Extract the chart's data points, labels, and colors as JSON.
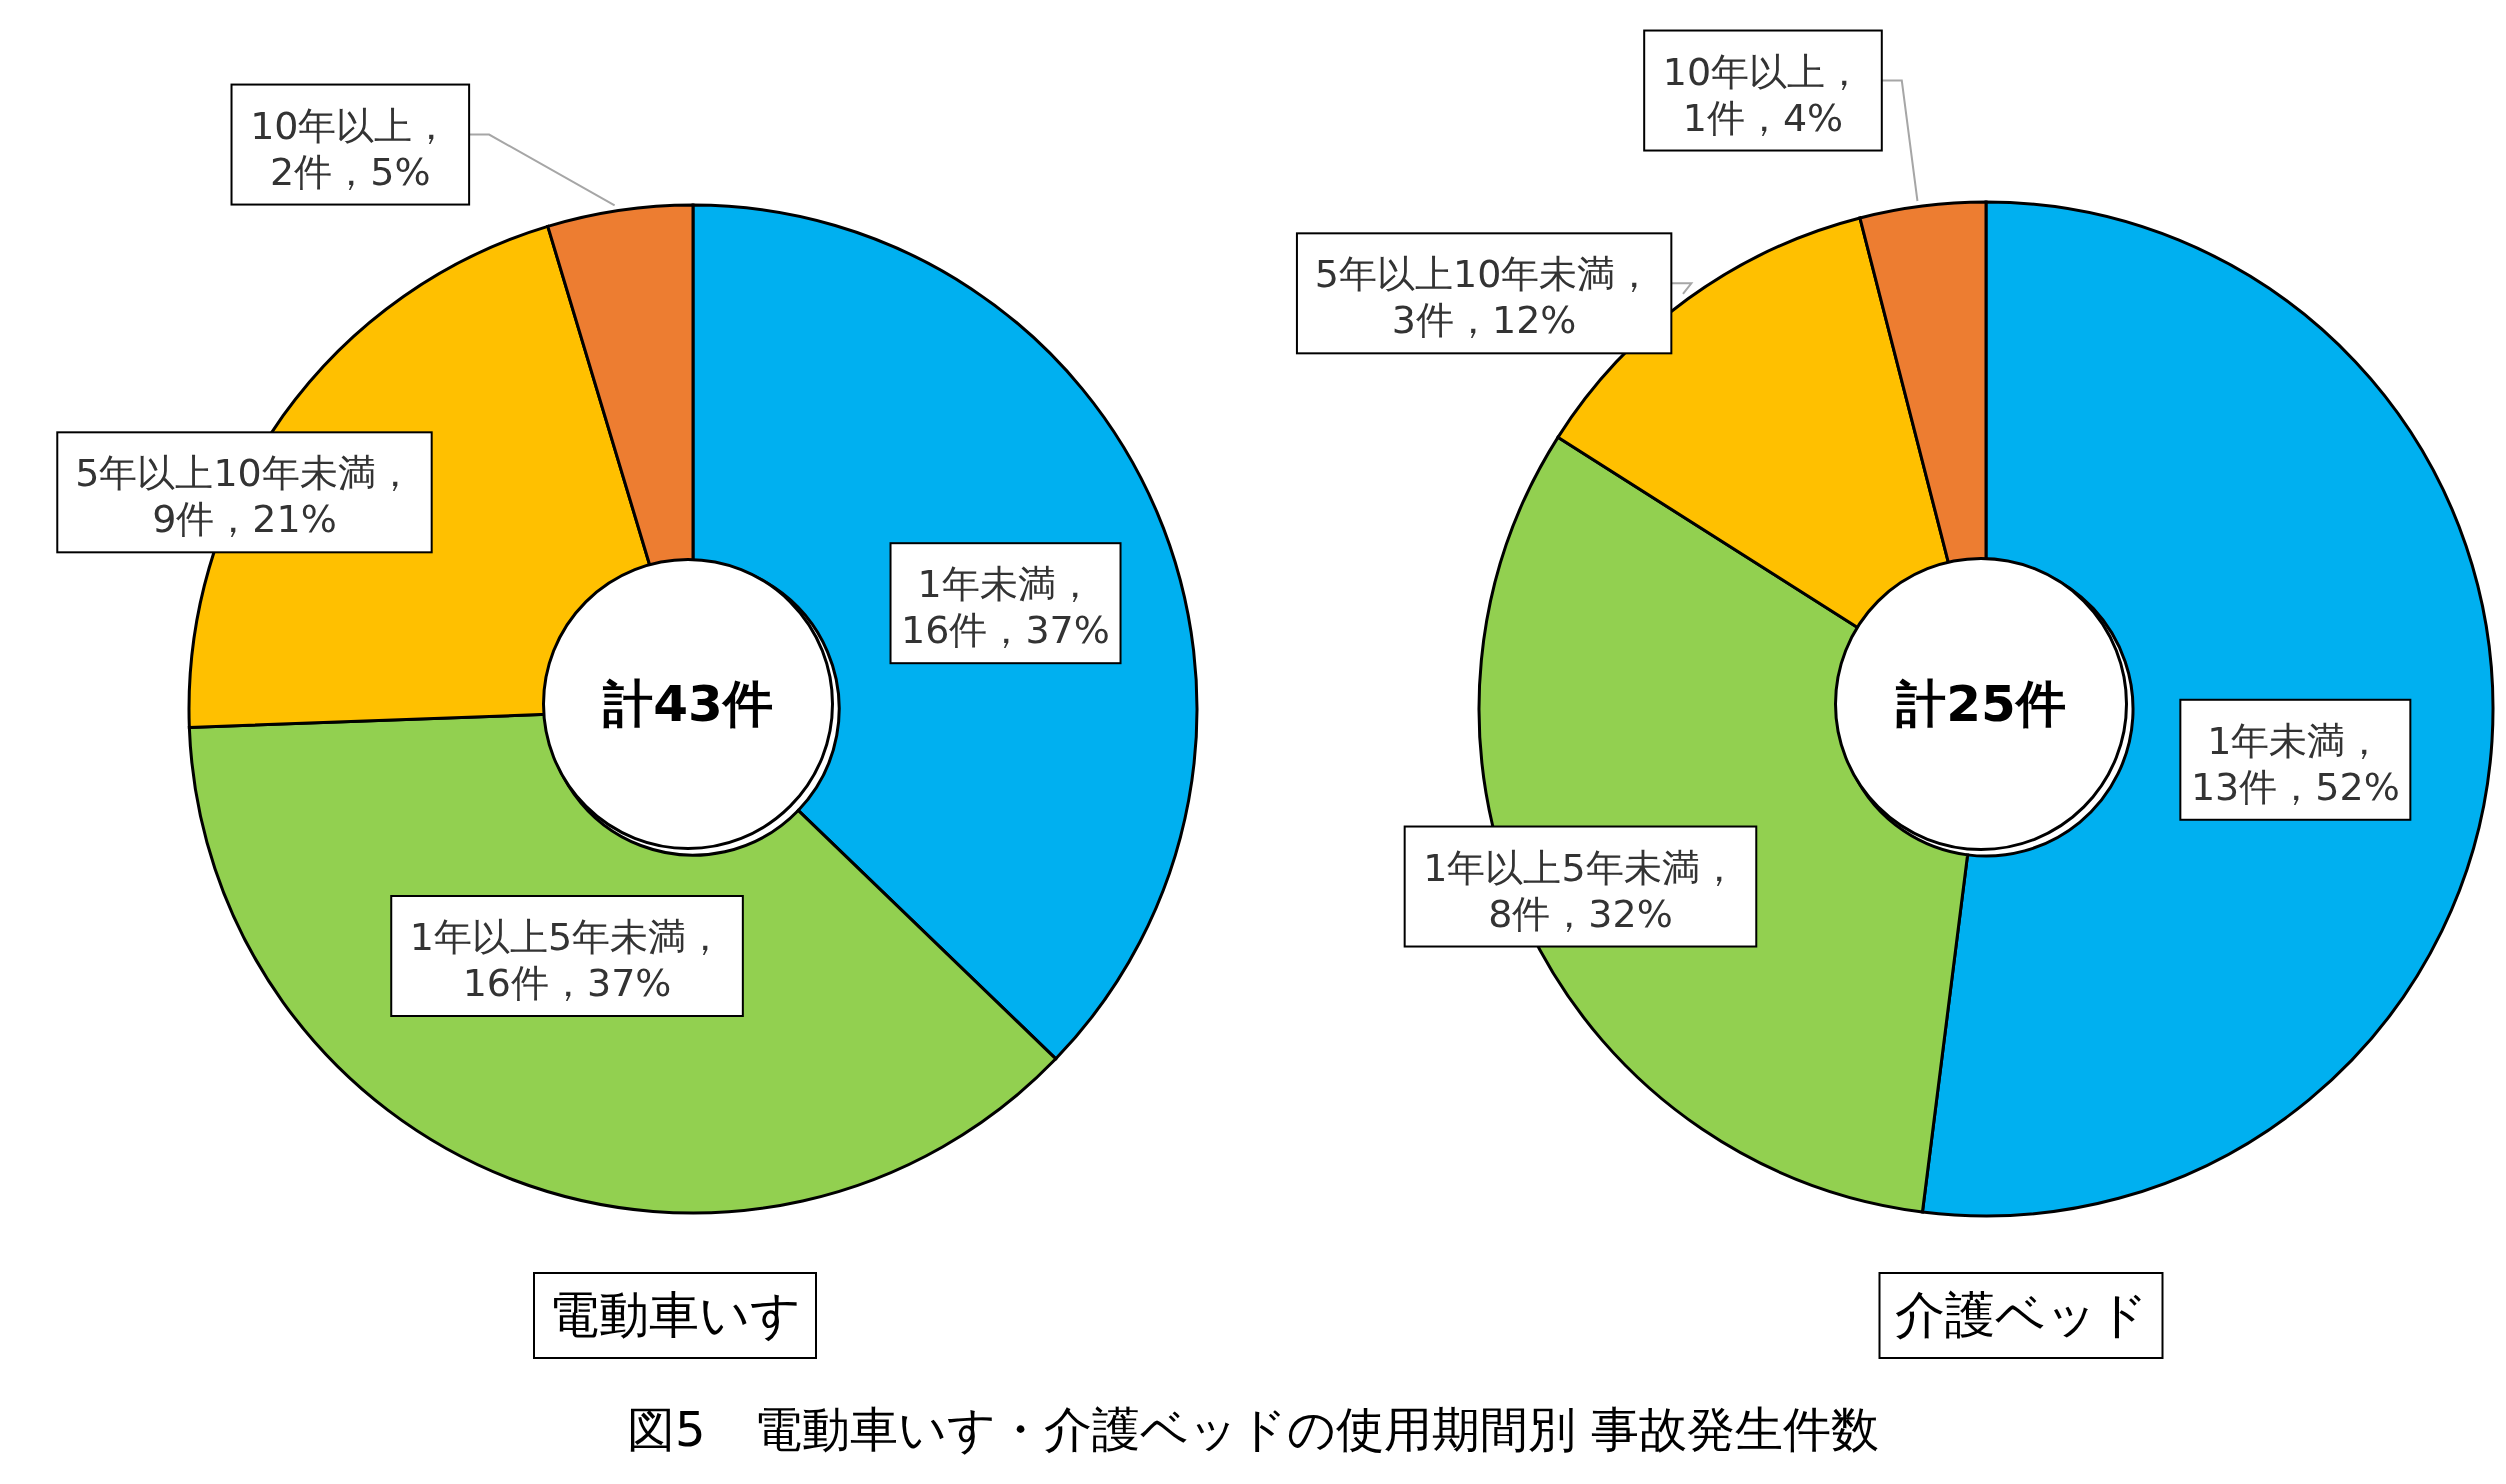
{
  "chart_data": [
    {
      "type": "donut",
      "title": "電動車いす",
      "categories": [
        "1年未満",
        "1年以上5年未満",
        "5年以上10年未満",
        "10年以上"
      ],
      "values": [
        16,
        16,
        9,
        2
      ],
      "colors": [
        "#00b0f0",
        "#92d050",
        "#ffc000",
        "#ed7d31"
      ],
      "value_labels": [
        "，16件，37%",
        "，16件，37%",
        "，9件，21%",
        "，2件，5%"
      ],
      "annotations": [
        "計43件",
        "図5　電動車いす・介護ベッドの使用期間別 事故発生件数"
      ]
    },
    {
      "type": "donut",
      "title": "介護ベッド",
      "categories": [
        "1年未満",
        "1年以上5年未満",
        "5年以上10年未満",
        "10年以上"
      ],
      "values": [
        13,
        8,
        3,
        1
      ],
      "colors": [
        "#00b0f0",
        "#92d050",
        "#ffc000",
        "#ed7d31"
      ],
      "value_labels": [
        "，13件，52%",
        "，8件，32%",
        "，3件，12%",
        "，1件，4%"
      ],
      "annotations": [
        "計25件"
      ]
    }
  ]
}
